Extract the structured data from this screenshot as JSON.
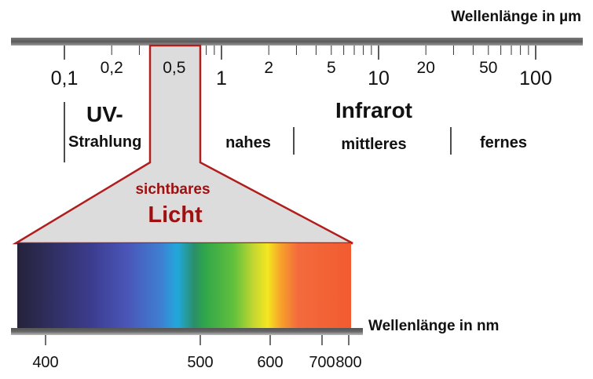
{
  "top_axis": {
    "title": "Wellenlänge in µm",
    "ticks": [
      {
        "value": 0.1,
        "label": "0,1",
        "major": true
      },
      {
        "value": 0.2,
        "label": "0,2",
        "major": false
      },
      {
        "value": 0.5,
        "label": "0,5",
        "major": false
      },
      {
        "value": 1,
        "label": "1",
        "major": true
      },
      {
        "value": 2,
        "label": "2",
        "major": false
      },
      {
        "value": 5,
        "label": "5",
        "major": false
      },
      {
        "value": 10,
        "label": "10",
        "major": true
      },
      {
        "value": 20,
        "label": "20",
        "major": false
      },
      {
        "value": 50,
        "label": "50",
        "major": false
      },
      {
        "value": 100,
        "label": "100",
        "major": true
      }
    ]
  },
  "regions": {
    "uv_title": "UV-",
    "uv_sub": "Strahlung",
    "ir_title": "Infrarot",
    "ir_near": "nahes",
    "ir_mid": "mittleres",
    "ir_far": "fernes",
    "visible_line1": "sichtbares",
    "visible_line2": "Licht"
  },
  "bottom_axis": {
    "title": "Wellenlänge in nm",
    "ticks": [
      {
        "value": 400,
        "label": "400"
      },
      {
        "value": 500,
        "label": "500"
      },
      {
        "value": 600,
        "label": "600"
      },
      {
        "value": 700,
        "label": "700"
      },
      {
        "value": 800,
        "label": "800"
      }
    ]
  },
  "colors": {
    "visible_outline": "#b01e1e",
    "visible_fill": "#dcdcdc",
    "visible_text": "#a01010",
    "axis_bar": "#555555"
  }
}
